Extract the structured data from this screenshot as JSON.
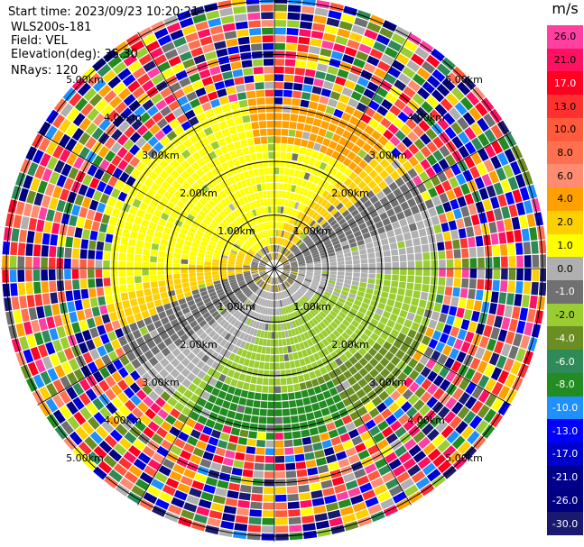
{
  "header": {
    "start_time": "Start time: 2023/09/23 10:20:21",
    "instrument": "WLS200s-181",
    "field": "Field: VEL",
    "elevation": "Elevation(deg): 35.30",
    "nrays": "NRays: 120"
  },
  "colorbar": {
    "unit": "m/s",
    "ticks": [
      "26.0",
      "21.0",
      "17.0",
      "13.0",
      "10.0",
      "8.0",
      "6.0",
      "4.0",
      "2.0",
      "1.0",
      "0.0",
      "-1.0",
      "-2.0",
      "-4.0",
      "-6.0",
      "-8.0",
      "-10.0",
      "-13.0",
      "-17.0",
      "-21.0",
      "-26.0",
      "-30.0"
    ],
    "colors": [
      "#ff40a0",
      "#ff1060",
      "#ff0020",
      "#ff3030",
      "#ff5a3c",
      "#ff7050",
      "#ff8c70",
      "#ffa000",
      "#ffd000",
      "#ffff00",
      "#b0b0b0",
      "#707070",
      "#9acd32",
      "#6b8e23",
      "#2e8b57",
      "#228b22",
      "#1e90ff",
      "#0000ff",
      "#0000cd",
      "#00008b",
      "#000080",
      "#191970"
    ]
  },
  "chart_data": {
    "type": "ppi",
    "field": "VEL",
    "nrays": 120,
    "range_ring_labels": [
      "1.00km",
      "2.00km",
      "3.00km",
      "4.00km",
      "5.00km"
    ],
    "range_rings_km": [
      1,
      2,
      3,
      4,
      5
    ],
    "max_range_km": 5.1,
    "velocity_range": [
      -30,
      26
    ],
    "colormap_ticks": [
      26.0,
      21.0,
      17.0,
      13.0,
      10.0,
      8.0,
      6.0,
      4.0,
      2.0,
      1.0,
      0.0,
      -1.0,
      -2.0,
      -4.0,
      -6.0,
      -8.0,
      -10.0,
      -13.0,
      -17.0,
      -21.0,
      -26.0,
      -30.0
    ],
    "notes_valid_range_km": 3.0
  }
}
